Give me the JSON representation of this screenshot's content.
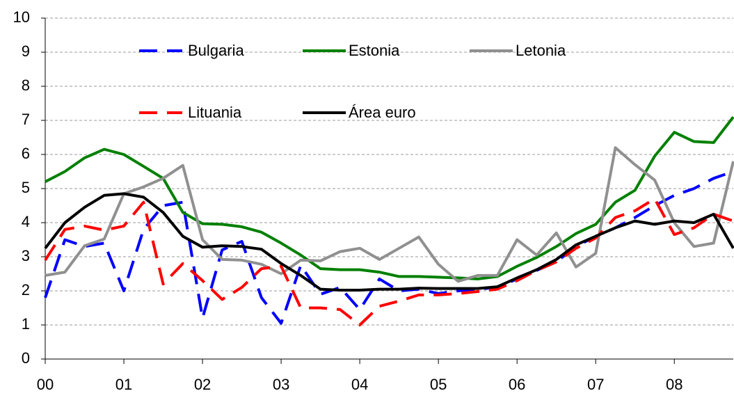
{
  "chart_data": {
    "type": "line",
    "x": [
      0,
      0.25,
      0.5,
      0.75,
      1,
      1.25,
      1.5,
      1.75,
      2,
      2.25,
      2.5,
      2.75,
      3,
      3.25,
      3.5,
      3.75,
      4,
      4.25,
      4.5,
      4.75,
      5,
      5.25,
      5.5,
      5.75,
      6,
      6.25,
      6.5,
      6.75,
      7,
      7.25,
      7.5,
      7.75,
      8,
      8.25,
      8.5,
      8.75
    ],
    "series": [
      {
        "name": "Bulgaria",
        "color": "#0000ff",
        "style": "dashed",
        "values": [
          1.8,
          3.5,
          3.3,
          3.4,
          2.0,
          3.8,
          4.5,
          4.6,
          1.2,
          3.2,
          3.45,
          1.8,
          1.05,
          2.75,
          1.9,
          2.1,
          1.45,
          2.35,
          2.0,
          2.05,
          1.92,
          2.0,
          2.05,
          2.1,
          2.35,
          2.6,
          2.85,
          3.3,
          3.6,
          3.85,
          4.15,
          4.5,
          4.8,
          5.0,
          5.3,
          5.5
        ]
      },
      {
        "name": "Estonia",
        "color": "#008000",
        "style": "solid",
        "values": [
          5.2,
          5.5,
          5.9,
          6.15,
          6.0,
          5.65,
          5.3,
          4.3,
          3.97,
          3.95,
          3.88,
          3.72,
          3.4,
          3.05,
          2.65,
          2.62,
          2.62,
          2.55,
          2.42,
          2.42,
          2.4,
          2.38,
          2.35,
          2.42,
          2.72,
          2.98,
          3.3,
          3.68,
          3.95,
          4.6,
          4.95,
          5.95,
          6.65,
          6.38,
          6.35,
          7.1
        ]
      },
      {
        "name": "Letonia",
        "color": "#909090",
        "style": "solid",
        "values": [
          2.45,
          2.55,
          3.32,
          3.52,
          4.85,
          5.05,
          5.3,
          5.68,
          3.5,
          2.92,
          2.9,
          2.78,
          2.5,
          2.9,
          2.88,
          3.15,
          3.25,
          2.92,
          3.25,
          3.58,
          2.78,
          2.28,
          2.45,
          2.45,
          3.5,
          3.05,
          3.7,
          2.7,
          3.1,
          6.2,
          5.7,
          5.25,
          4.0,
          3.3,
          3.4,
          5.8
        ]
      },
      {
        "name": "Lituania",
        "color": "#ff0000",
        "style": "dashed",
        "values": [
          2.9,
          3.8,
          3.9,
          3.78,
          3.9,
          4.6,
          2.2,
          2.8,
          2.3,
          1.75,
          2.1,
          2.65,
          2.72,
          1.5,
          1.5,
          1.45,
          1.0,
          1.55,
          1.7,
          1.88,
          1.88,
          1.92,
          1.98,
          2.05,
          2.3,
          2.6,
          2.85,
          3.25,
          3.55,
          4.15,
          4.35,
          4.7,
          3.65,
          3.85,
          4.25,
          4.05
        ]
      },
      {
        "name": "Área euro",
        "color": "#000000",
        "style": "solid",
        "values": [
          3.25,
          4.0,
          4.45,
          4.8,
          4.85,
          4.75,
          4.3,
          3.6,
          3.28,
          3.32,
          3.3,
          3.22,
          2.8,
          2.45,
          2.05,
          2.02,
          2.02,
          2.05,
          2.05,
          2.08,
          2.07,
          2.07,
          2.07,
          2.12,
          2.38,
          2.62,
          2.92,
          3.35,
          3.6,
          3.85,
          4.05,
          3.95,
          4.05,
          4.0,
          4.25,
          3.25
        ]
      }
    ],
    "xlim": [
      0,
      8.75
    ],
    "xticks": [
      {
        "value": 0,
        "label": "00"
      },
      {
        "value": 1,
        "label": "01"
      },
      {
        "value": 2,
        "label": "02"
      },
      {
        "value": 3,
        "label": "03"
      },
      {
        "value": 4,
        "label": "04"
      },
      {
        "value": 5,
        "label": "05"
      },
      {
        "value": 6,
        "label": "06"
      },
      {
        "value": 7,
        "label": "07"
      },
      {
        "value": 8,
        "label": "08"
      }
    ],
    "ylim": [
      0,
      10
    ],
    "yticks": [
      0,
      1,
      2,
      3,
      4,
      5,
      6,
      7,
      8,
      9,
      10
    ],
    "grid": true
  }
}
